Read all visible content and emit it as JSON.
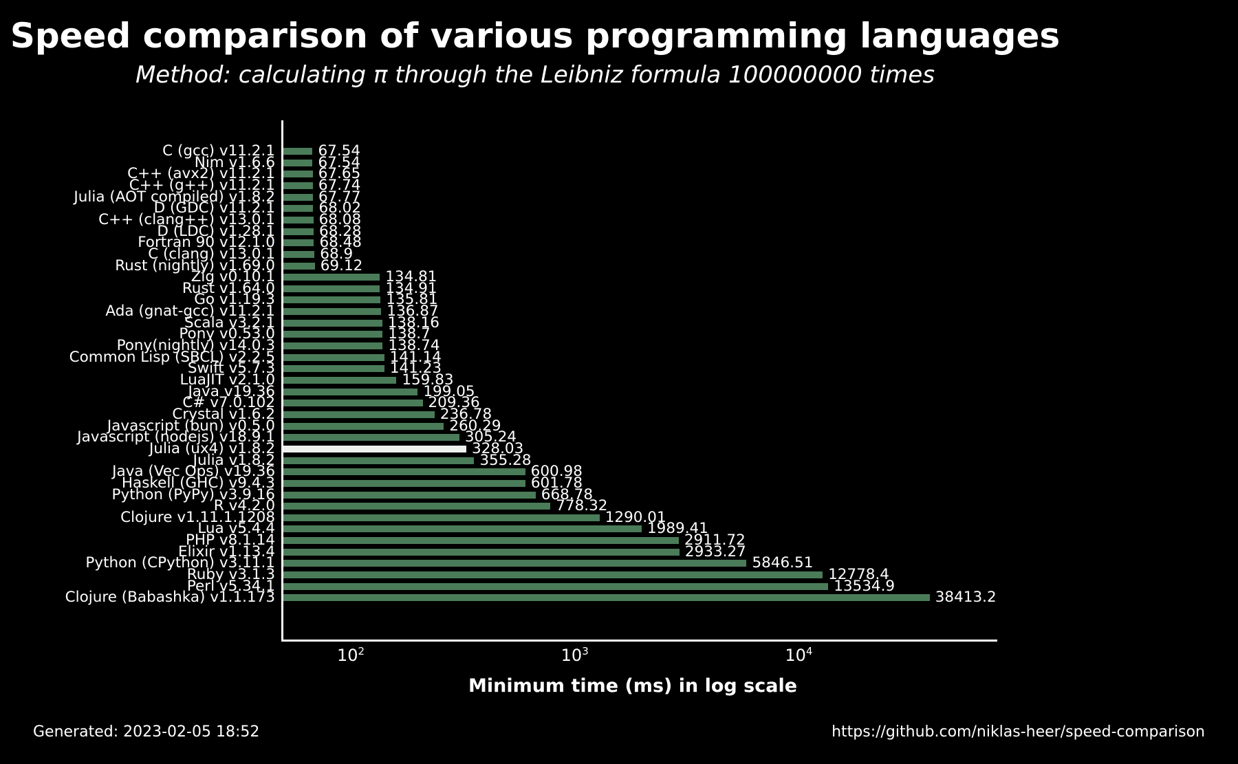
{
  "header": {
    "title": "Speed comparison of various programming languages",
    "subtitle": "Method: calculating π through the Leibniz formula 100000000 times"
  },
  "chart_data": {
    "type": "bar",
    "orientation": "horizontal",
    "x_scale": "log",
    "xlabel": "Minimum time (ms) in log scale",
    "x_ticks": [
      {
        "base": "10",
        "exponent": "2",
        "value": 100
      },
      {
        "base": "10",
        "exponent": "3",
        "value": 1000
      },
      {
        "base": "10",
        "exponent": "4",
        "value": 10000
      }
    ],
    "x_axis_start_ms": 50,
    "bar_color": "#4a7c59",
    "highlight_color": "#eef1ee",
    "highlight_index": 26,
    "categories": [
      "C (gcc) v11.2.1",
      "Nim v1.6.6",
      "C++ (avx2) v11.2.1",
      "C++ (g++) v11.2.1",
      "Julia (AOT compiled) v1.8.2",
      "D (GDC) v11.2.1",
      "C++ (clang++) v13.0.1",
      "D (LDC) v1.28.1",
      "Fortran 90 v12.1.0",
      "C (clang) v13.0.1",
      "Rust (nightly) v1.69.0",
      "Zig v0.10.1",
      "Rust v1.64.0",
      "Go v1.19.3",
      "Ada (gnat-gcc) v11.2.1",
      "Scala v3.2.1",
      "Pony v0.53.0",
      "Pony(nightly) v14.0.3",
      "Common Lisp (SBCL) v2.2.5",
      "Swift v5.7.3",
      "LuaJIT v2.1.0",
      "Java v19.36",
      "C# v7.0.102",
      "Crystal v1.6.2",
      "Javascript (bun) v0.5.0",
      "Javascript (nodejs) v18.9.1",
      "Julia (ux4) v1.8.2",
      "Julia v1.8.2",
      "Java (Vec Ops) v19.36",
      "Haskell (GHC) v9.4.3",
      "Python (PyPy) v3.9.16",
      "R v4.2.0",
      "Clojure v1.11.1.1208",
      "Lua v5.4.4",
      "PHP v8.1.14",
      "Elixir v1.13.4",
      "Python (CPython) v3.11.1",
      "Ruby v3.1.3",
      "Perl v5.34.1",
      "Clojure (Babashka) v1.1.173"
    ],
    "values": [
      67.54,
      67.54,
      67.65,
      67.74,
      67.77,
      68.02,
      68.08,
      68.28,
      68.48,
      68.9,
      69.12,
      134.81,
      134.91,
      135.81,
      136.87,
      138.16,
      138.7,
      138.74,
      141.14,
      141.23,
      159.83,
      199.05,
      209.36,
      236.78,
      260.29,
      305.24,
      328.03,
      355.28,
      600.98,
      601.78,
      668.78,
      778.32,
      1290.01,
      1989.41,
      2911.72,
      2933.27,
      5846.51,
      12778.4,
      13534.9,
      38413.2
    ],
    "value_labels": [
      "67.54",
      "67.54",
      "67.65",
      "67.74",
      "67.77",
      "68.02",
      "68.08",
      "68.28",
      "68.48",
      "68.9",
      "69.12",
      "134.81",
      "134.91",
      "135.81",
      "136.87",
      "138.16",
      "138.7",
      "138.74",
      "141.14",
      "141.23",
      "159.83",
      "199.05",
      "209.36",
      "236.78",
      "260.29",
      "305.24",
      "328.03",
      "355.28",
      "600.98",
      "601.78",
      "668.78",
      "778.32",
      "1290.01",
      "1989.41",
      "2911.72",
      "2933.27",
      "5846.51",
      "12778.4",
      "13534.9",
      "38413.2"
    ]
  },
  "footer": {
    "generated": "Generated: 2023-02-05 18:52",
    "source_url": "https://github.com/niklas-heer/speed-comparison"
  }
}
